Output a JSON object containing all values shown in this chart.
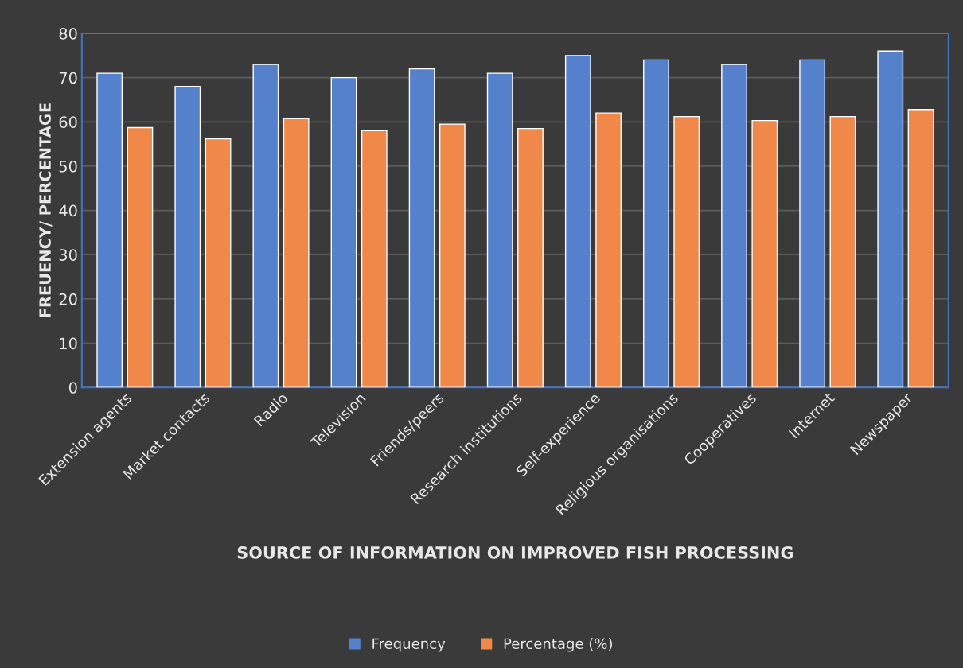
{
  "chart_data": {
    "type": "bar",
    "xlabel": "SOURCE OF INFORMATION ON IMPROVED FISH PROCESSING",
    "ylabel": "FREUENCY/ PERCENTAGE",
    "categories": [
      "Extension agents",
      "Market contacts",
      "Radio",
      "Television",
      "Friends/peers",
      "Research institutions",
      "Self-experience",
      "Religious organisations",
      "Cooperatives",
      "Internet",
      "Newspaper"
    ],
    "series": [
      {
        "name": "Frequency",
        "color": "#5580cc",
        "values": [
          71,
          68,
          73,
          70,
          72,
          71,
          75,
          74,
          73,
          74,
          76
        ]
      },
      {
        "name": "Percentage (%)",
        "color": "#f0884a",
        "values": [
          58.7,
          56.2,
          60.7,
          58.0,
          59.5,
          58.5,
          62.0,
          61.2,
          60.3,
          61.2,
          62.8
        ]
      }
    ],
    "ylim": [
      0,
      80
    ],
    "yticks": [
      0,
      10,
      20,
      30,
      40,
      50,
      60,
      70,
      80
    ],
    "grid": "y",
    "legend": "bottom"
  }
}
